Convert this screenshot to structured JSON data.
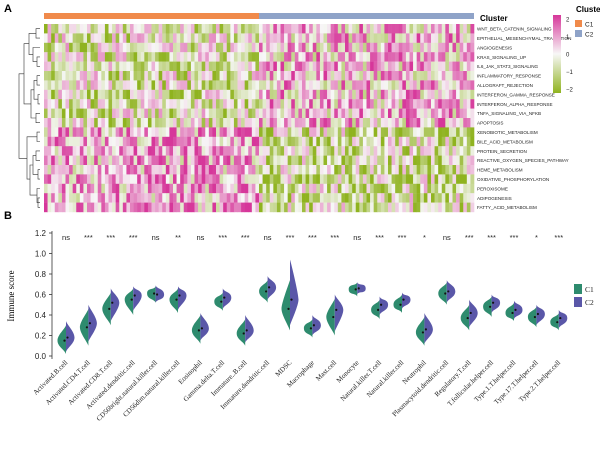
{
  "panel_a": {
    "label": "A",
    "cluster_label": "Cluster",
    "legend_title": "Cluster",
    "legend_items": [
      {
        "name": "C1",
        "color": "#f08a4b"
      },
      {
        "name": "C2",
        "color": "#8fa3c8"
      }
    ],
    "scale_ticks": [
      "2",
      "1",
      "0",
      "−1",
      "−2"
    ],
    "rows": [
      "WNT_BETA_CATENIN_SIGNALING",
      "EPITHELIAL_MESENCHYMAL_TRANSITION",
      "ANGIOGENESIS",
      "KRAS_SIGNALING_UP",
      "IL6_JAK_STAT3_SIGNALING",
      "INFLAMMATORY_RESPONSE",
      "ALLOGRAFT_REJECTION",
      "INTERFERON_GAMMA_RESPONSE",
      "INTERFERON_ALPHA_RESPONSE",
      "TNFA_SIGNALING_VIA_NFKB",
      "APOPTOSIS",
      "XENOBIOTIC_METABOLISM",
      "BILE_ACID_METABOLISM",
      "PROTEIN_SECRETION",
      "REACTIVE_OXYGEN_SPECIES_PATHWAY",
      "HEME_METABOLISM",
      "OXIDATIVE_PHOSPHORYLATION",
      "PEROXISOME",
      "ADIPOGENESIS",
      "FATTY_ACID_METABOLISM"
    ],
    "colors": {
      "high": "#d6379a",
      "mid": "#f7f7f7",
      "low": "#8fb31f"
    }
  },
  "chart_data": {
    "type": "violin",
    "panel_label": "B",
    "ylabel": "Immune score",
    "ylim": [
      0.0,
      1.2
    ],
    "yticks": [
      "0.0",
      "0.2",
      "0.4",
      "0.6",
      "0.8",
      "1.0",
      "1.2"
    ],
    "legend": [
      {
        "name": "C1",
        "color": "#2e8b6e"
      },
      {
        "name": "C2",
        "color": "#5a57a8"
      }
    ],
    "categories": [
      "Activated.B.cell",
      "Activated.CD4.T.cell",
      "Activated.CD8.T.cell",
      "Activated.dendritic.cell",
      "CD56bright.natural.killer.cell",
      "CD56dim.natural.killer.cell",
      "Eosinophil",
      "Gamma.delta.T.cell",
      "Immature..B.cell",
      "Immature.dendritic.cell",
      "MDSC",
      "Macrophage",
      "Mast.cell",
      "Monocyte",
      "Natural.killer.T.cell",
      "Natural.killer.cell",
      "Neutrophil",
      "Plasmacytoid.dendritic.cell",
      "Regulatory.T.cell",
      "T.follicular.helper.cell",
      "Type.1.T.helper.cell",
      "Type.17.T.helper.cell",
      "Type.2.T.helper.cell"
    ],
    "significance": [
      "ns",
      "***",
      "***",
      "***",
      "ns",
      "**",
      "ns",
      "***",
      "***",
      "ns",
      "***",
      "***",
      "***",
      "ns",
      "***",
      "***",
      "*",
      "ns",
      "***",
      "***",
      "***",
      "*",
      "***"
    ],
    "series": [
      {
        "name": "C1",
        "median": [
          0.15,
          0.28,
          0.46,
          0.55,
          0.61,
          0.55,
          0.25,
          0.53,
          0.22,
          0.63,
          0.46,
          0.27,
          0.38,
          0.65,
          0.45,
          0.5,
          0.23,
          0.61,
          0.37,
          0.48,
          0.42,
          0.38,
          0.33
        ],
        "min": [
          0.02,
          0.1,
          0.3,
          0.4,
          0.52,
          0.42,
          0.12,
          0.44,
          0.1,
          0.52,
          0.25,
          0.18,
          0.2,
          0.58,
          0.36,
          0.42,
          0.1,
          0.5,
          0.25,
          0.38,
          0.34,
          0.28,
          0.25
        ],
        "max": [
          0.3,
          0.46,
          0.62,
          0.66,
          0.68,
          0.66,
          0.4,
          0.62,
          0.36,
          0.74,
          0.74,
          0.36,
          0.56,
          0.72,
          0.55,
          0.6,
          0.38,
          0.72,
          0.5,
          0.58,
          0.52,
          0.48,
          0.42
        ]
      },
      {
        "name": "C2",
        "median": [
          0.18,
          0.32,
          0.52,
          0.59,
          0.6,
          0.59,
          0.27,
          0.57,
          0.25,
          0.67,
          0.55,
          0.3,
          0.45,
          0.66,
          0.5,
          0.55,
          0.26,
          0.63,
          0.42,
          0.52,
          0.45,
          0.41,
          0.37
        ],
        "min": [
          0.04,
          0.14,
          0.34,
          0.44,
          0.52,
          0.45,
          0.15,
          0.46,
          0.13,
          0.55,
          0.3,
          0.2,
          0.24,
          0.6,
          0.4,
          0.46,
          0.12,
          0.52,
          0.28,
          0.42,
          0.36,
          0.3,
          0.27
        ],
        "max": [
          0.34,
          0.5,
          0.66,
          0.68,
          0.69,
          0.68,
          0.42,
          0.66,
          0.4,
          0.78,
          0.94,
          0.4,
          0.6,
          0.72,
          0.58,
          0.62,
          0.42,
          0.74,
          0.55,
          0.6,
          0.54,
          0.5,
          0.45
        ]
      }
    ]
  }
}
